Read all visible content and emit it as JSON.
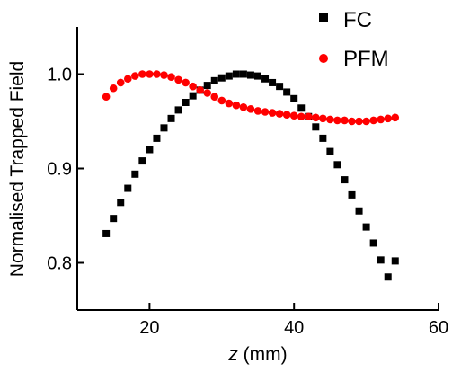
{
  "chart_data": {
    "type": "scatter",
    "xlabel_var": "z",
    "xlabel_unit": " (mm)",
    "ylabel": "Normalised Trapped Field",
    "xlim": [
      10,
      60
    ],
    "ylim": [
      0.75,
      1.05
    ],
    "x_ticks": [
      20,
      40,
      60
    ],
    "y_ticks": [
      0.8,
      0.9,
      1.0
    ],
    "x_tick_labels": [
      "20",
      "40",
      "60"
    ],
    "y_tick_labels": [
      "0.8",
      "0.9",
      "1.0"
    ],
    "legend_position": "top-right",
    "series": [
      {
        "name": "FC",
        "marker": "square",
        "color": "#000000",
        "x": [
          14,
          15,
          16,
          17,
          18,
          19,
          20,
          21,
          22,
          23,
          24,
          25,
          26,
          27,
          28,
          29,
          30,
          31,
          32,
          33,
          34,
          35,
          36,
          37,
          38,
          39,
          40,
          41,
          42,
          43,
          44,
          45,
          46,
          47,
          48,
          49,
          50,
          51,
          52,
          53,
          54
        ],
        "y": [
          0.831,
          0.847,
          0.864,
          0.879,
          0.894,
          0.908,
          0.92,
          0.932,
          0.943,
          0.953,
          0.962,
          0.97,
          0.977,
          0.983,
          0.988,
          0.993,
          0.996,
          0.998,
          1.0,
          1.0,
          0.999,
          0.998,
          0.995,
          0.991,
          0.987,
          0.981,
          0.974,
          0.964,
          0.955,
          0.944,
          0.932,
          0.918,
          0.904,
          0.888,
          0.872,
          0.855,
          0.838,
          0.821,
          0.803,
          0.785,
          0.802
        ]
      },
      {
        "name": "PFM",
        "marker": "circle",
        "color": "#ff0000",
        "x": [
          14,
          15,
          16,
          17,
          18,
          19,
          20,
          21,
          22,
          23,
          24,
          25,
          26,
          27,
          28,
          29,
          30,
          31,
          32,
          33,
          34,
          35,
          36,
          37,
          38,
          39,
          40,
          41,
          42,
          43,
          44,
          45,
          46,
          47,
          48,
          49,
          50,
          51,
          52,
          53,
          54
        ],
        "y": [
          0.976,
          0.985,
          0.991,
          0.995,
          0.998,
          1.0,
          1.0,
          1.0,
          0.999,
          0.997,
          0.994,
          0.991,
          0.987,
          0.983,
          0.98,
          0.976,
          0.972,
          0.969,
          0.967,
          0.965,
          0.963,
          0.961,
          0.96,
          0.959,
          0.958,
          0.957,
          0.956,
          0.955,
          0.955,
          0.954,
          0.953,
          0.952,
          0.951,
          0.951,
          0.95,
          0.95,
          0.95,
          0.951,
          0.952,
          0.953,
          0.954
        ]
      }
    ]
  }
}
